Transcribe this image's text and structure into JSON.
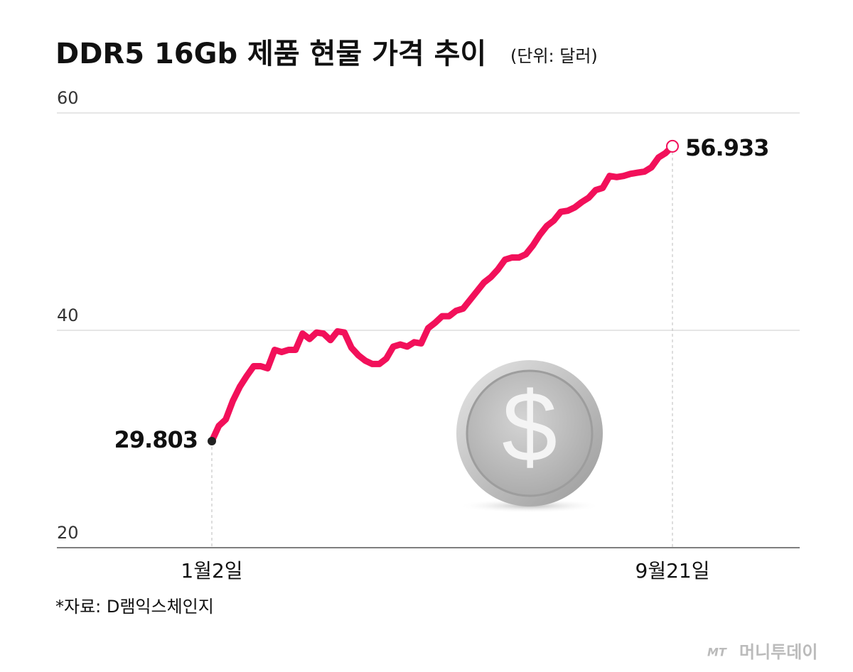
{
  "chart_data": {
    "type": "line",
    "title": "DDR5 16Gb 제품 현물 가격 추이",
    "subtitle": "(단위: 달러)",
    "source": "*자료: D램익스체인지",
    "brand": "머니투데이",
    "brand_mark": "MT",
    "categories": [
      "1월2일",
      null,
      null,
      null,
      null,
      null,
      null,
      null,
      null,
      null,
      null,
      null,
      null,
      null,
      null,
      null,
      null,
      null,
      null,
      null,
      null,
      null,
      null,
      null,
      null,
      null,
      null,
      null,
      null,
      null,
      null,
      null,
      null,
      null,
      null,
      null,
      null,
      null,
      null,
      null,
      null,
      null,
      null,
      null,
      null,
      null,
      null,
      null,
      null,
      null,
      null,
      null,
      null,
      null,
      null,
      null,
      null,
      null,
      null,
      null,
      null,
      null,
      null,
      null,
      null,
      null,
      "9월21일"
    ],
    "series": [
      {
        "name": "DDR5 16Gb",
        "color": "#f2105a",
        "values": [
          29.803,
          31.2,
          31.8,
          33.5,
          34.8,
          35.8,
          36.7,
          36.7,
          36.5,
          38.2,
          38.0,
          38.2,
          38.2,
          39.7,
          39.2,
          39.8,
          39.7,
          39.1,
          39.9,
          39.8,
          38.4,
          37.7,
          37.2,
          36.9,
          36.9,
          37.4,
          38.5,
          38.7,
          38.5,
          38.9,
          38.8,
          40.2,
          40.7,
          41.3,
          41.3,
          41.8,
          42.0,
          42.8,
          43.6,
          44.4,
          44.9,
          45.6,
          46.5,
          46.7,
          46.7,
          47.0,
          47.8,
          48.8,
          49.6,
          50.1,
          50.9,
          51.0,
          51.3,
          51.8,
          52.2,
          52.9,
          53.1,
          54.2,
          54.1,
          54.2,
          54.4,
          54.5,
          54.6,
          55.0,
          55.9,
          56.3,
          56.933
        ]
      }
    ],
    "ylim": [
      20,
      60
    ],
    "yticks": [
      20,
      40,
      60
    ],
    "grid": true
  }
}
